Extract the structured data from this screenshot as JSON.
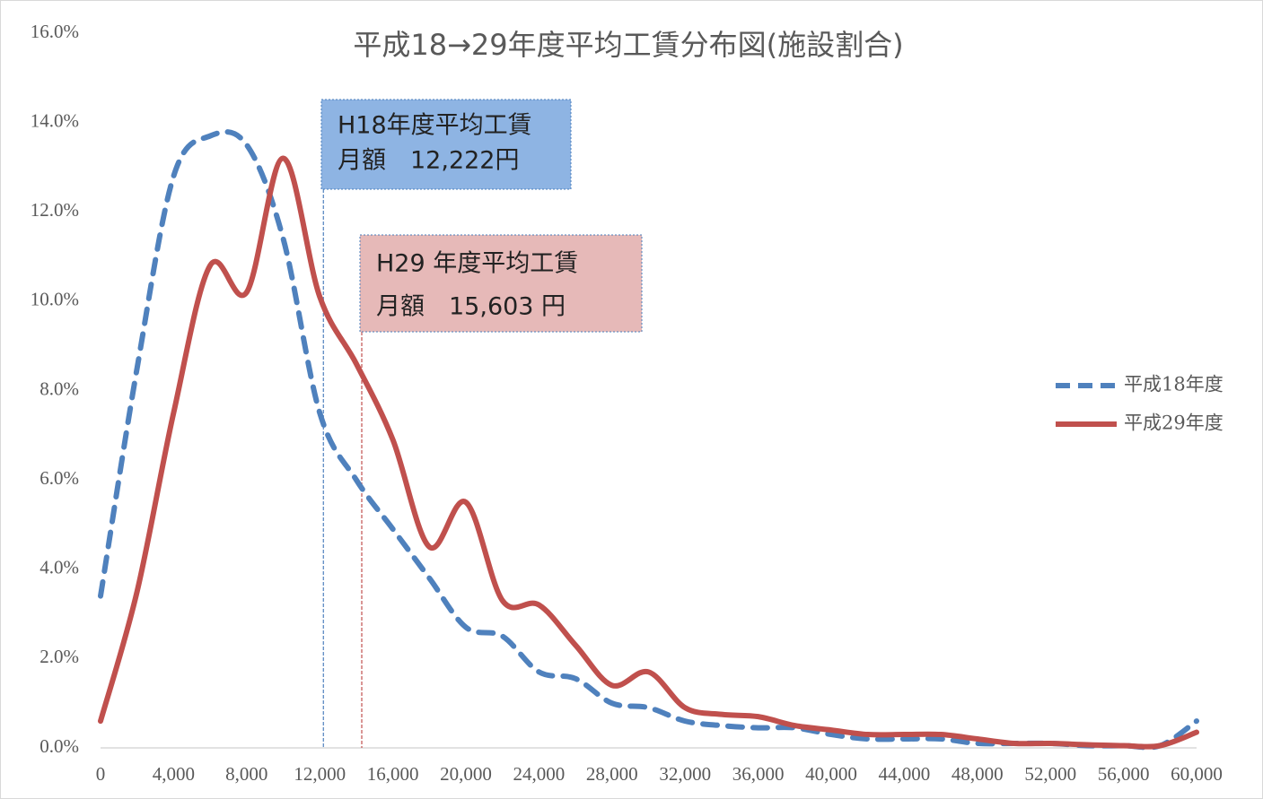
{
  "chart_data": {
    "type": "line",
    "title": "平成18→29年度平均工賃分布図(施設割合)",
    "x": [
      0,
      2000,
      4000,
      6000,
      8000,
      10000,
      12000,
      14000,
      16000,
      18000,
      20000,
      22000,
      24000,
      26000,
      28000,
      30000,
      32000,
      34000,
      36000,
      38000,
      40000,
      42000,
      44000,
      46000,
      48000,
      50000,
      52000,
      54000,
      56000,
      58000,
      60000
    ],
    "series": [
      {
        "name": "平成18年度",
        "color": "#4f81bd",
        "dash": true,
        "values": [
          3.4,
          8.5,
          12.8,
          13.7,
          13.5,
          11.4,
          7.5,
          6.0,
          4.9,
          3.8,
          2.7,
          2.5,
          1.7,
          1.55,
          1.0,
          0.9,
          0.6,
          0.5,
          0.45,
          0.45,
          0.3,
          0.2,
          0.2,
          0.2,
          0.1,
          0.1,
          0.1,
          0.05,
          0.05,
          0.05,
          0.6
        ]
      },
      {
        "name": "平成29年度",
        "color": "#c0504d",
        "dash": false,
        "values": [
          0.6,
          3.5,
          7.5,
          10.8,
          10.2,
          13.2,
          10.1,
          8.6,
          6.9,
          4.5,
          5.5,
          3.3,
          3.2,
          2.3,
          1.4,
          1.7,
          0.9,
          0.75,
          0.7,
          0.5,
          0.4,
          0.3,
          0.3,
          0.3,
          0.2,
          0.1,
          0.1,
          0.07,
          0.05,
          0.05,
          0.35
        ]
      }
    ],
    "xlim": [
      0,
      60000
    ],
    "xticks": [
      0,
      {
        "value": 4000,
        "label": "4,000"
      },
      {
        "value": 8000,
        "label": "8,000"
      },
      {
        "value": 12000,
        "label": "12,000"
      },
      {
        "value": 16000,
        "label": "16,000"
      },
      {
        "value": 20000,
        "label": "20,000"
      },
      {
        "value": 24000,
        "label": "24,000"
      },
      {
        "value": 28000,
        "label": "28,000"
      },
      {
        "value": 32000,
        "label": "32,000"
      },
      {
        "value": 36000,
        "label": "36,000"
      },
      {
        "value": 40000,
        "label": "40,000"
      },
      {
        "value": 44000,
        "label": "44,000"
      },
      {
        "value": 48000,
        "label": "48,000"
      },
      {
        "value": 52000,
        "label": "52,000"
      },
      {
        "value": 56000,
        "label": "56,000"
      },
      {
        "value": 60000,
        "label": "60,000"
      }
    ],
    "ylim": [
      0,
      16
    ],
    "yticks": [
      {
        "value": 0,
        "label": "0.0%"
      },
      {
        "value": 2,
        "label": "2.0%"
      },
      {
        "value": 4,
        "label": "4.0%"
      },
      {
        "value": 6,
        "label": "6.0%"
      },
      {
        "value": 8,
        "label": "8.0%"
      },
      {
        "value": 10,
        "label": "10.0%"
      },
      {
        "value": 12,
        "label": "12.0%"
      },
      {
        "value": 14,
        "label": "14.0%"
      },
      {
        "value": 16,
        "label": "16.0%"
      }
    ],
    "legend": "right",
    "annotations": [
      {
        "lines": [
          "H18年度平均工賃",
          "月額　12,222円"
        ],
        "x": 12200,
        "color": "#8eb4e3",
        "line_color": "#4f81bd"
      },
      {
        "lines": [
          "H29 年度平均工賃",
          "月額　15,603 円"
        ],
        "x": 14300,
        "color": "#e6b9b8",
        "line_color": "#c0504d"
      }
    ]
  }
}
